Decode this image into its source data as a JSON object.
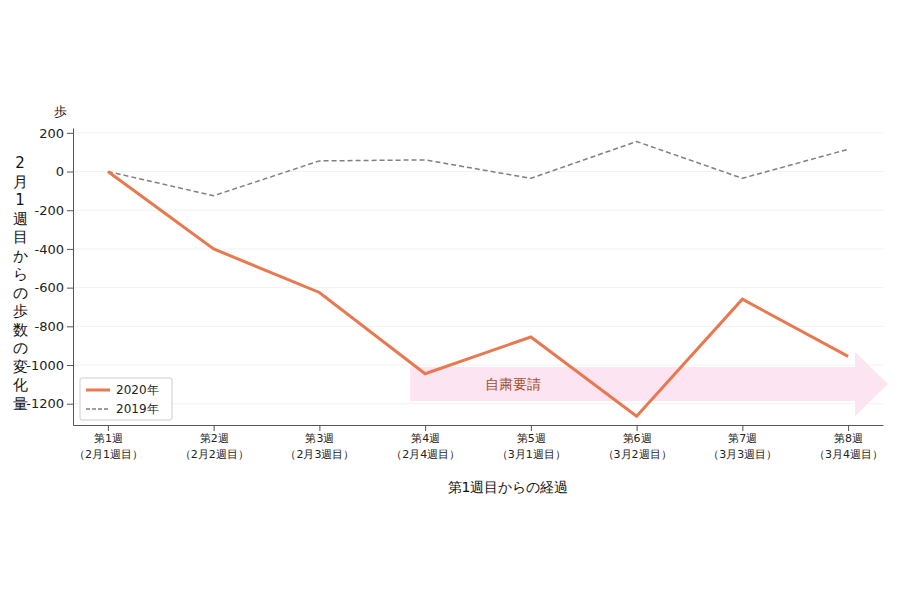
{
  "chart_data": {
    "type": "line",
    "y_label": "2月1週目からの歩数の変化量",
    "y_unit_label": "歩",
    "x_label": "第1週目からの経過",
    "categories": [
      "第1週\n（2月1週目）",
      "第2週\n（2月2週目）",
      "第3週\n（2月3週目）",
      "第4週\n（2月4週目）",
      "第5週\n（3月1週目）",
      "第6週\n（3月2週目）",
      "第7週\n（3月3週目）",
      "第8週\n（3月4週目）"
    ],
    "series": [
      {
        "name": "2020年",
        "color": "#e8784f",
        "line_style": "solid",
        "values": [
          0,
          -400,
          -625,
          -1045,
          -855,
          -1265,
          -660,
          -955
        ]
      },
      {
        "name": "2019年",
        "color": "#808080",
        "line_style": "dashed",
        "values": [
          0,
          -125,
          55,
          60,
          -35,
          155,
          -35,
          115
        ]
      }
    ],
    "ylim": [
      -1310,
      225
    ],
    "yticks": [
      200,
      0,
      -200,
      -400,
      -600,
      -800,
      -1000,
      -1200
    ],
    "grid": true,
    "legend": "lower left",
    "annotations": [
      {
        "text": "自粛要請",
        "x": 3,
        "color": "#fde4f2"
      }
    ]
  }
}
